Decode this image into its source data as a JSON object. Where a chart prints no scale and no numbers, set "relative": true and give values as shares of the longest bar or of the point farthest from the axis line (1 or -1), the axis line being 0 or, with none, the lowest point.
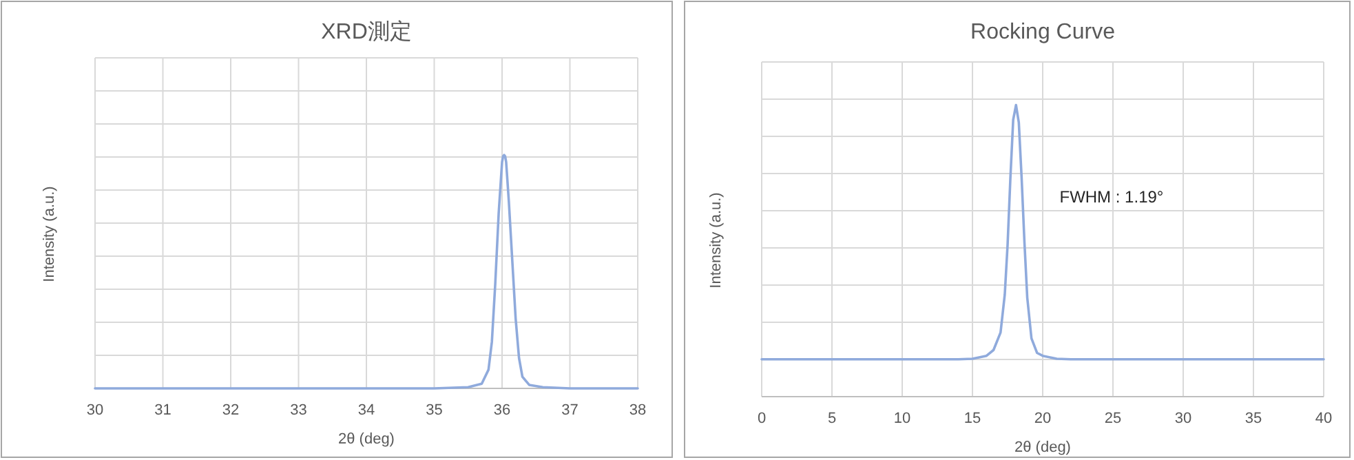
{
  "chart_data": [
    {
      "type": "line",
      "title": "XRD測定",
      "xlabel": "2θ (deg)",
      "ylabel": "Intensity (a.u.)",
      "xlim": [
        30,
        38
      ],
      "xticks": [
        30,
        31,
        32,
        33,
        34,
        35,
        36,
        37,
        38
      ],
      "relative": true,
      "grid": true,
      "series": [
        {
          "color": "#8faadc",
          "x": [
            30,
            35,
            35.5,
            35.7,
            35.8,
            35.85,
            35.9,
            35.95,
            36.0,
            36.015,
            36.03,
            36.045,
            36.06,
            36.1,
            36.15,
            36.2,
            36.25,
            36.3,
            36.4,
            36.6,
            37,
            38
          ],
          "values": [
            0,
            0,
            0.005,
            0.02,
            0.08,
            0.2,
            0.45,
            0.75,
            0.97,
            0.995,
            1,
            0.995,
            0.97,
            0.8,
            0.55,
            0.3,
            0.13,
            0.05,
            0.015,
            0.005,
            0,
            0
          ]
        }
      ]
    },
    {
      "type": "line",
      "title": "Rocking Curve",
      "xlabel": "2θ (deg)",
      "ylabel": "Intensity (a.u.)",
      "xlim": [
        0,
        40
      ],
      "xticks": [
        0,
        5,
        10,
        15,
        20,
        25,
        30,
        35,
        40
      ],
      "relative": true,
      "grid": true,
      "annotations": [
        "FWHM : 1.19°"
      ],
      "series": [
        {
          "color": "#8faadc",
          "x": [
            0,
            14,
            15,
            16,
            16.5,
            17,
            17.3,
            17.5,
            17.7,
            17.9,
            18.1,
            18.3,
            18.5,
            18.7,
            18.9,
            19.2,
            19.6,
            20,
            21,
            22,
            40
          ],
          "values": [
            0.128,
            0.128,
            0.13,
            0.14,
            0.16,
            0.22,
            0.35,
            0.52,
            0.75,
            0.95,
            1,
            0.94,
            0.75,
            0.53,
            0.34,
            0.2,
            0.15,
            0.14,
            0.13,
            0.128,
            0.128
          ]
        }
      ]
    }
  ]
}
